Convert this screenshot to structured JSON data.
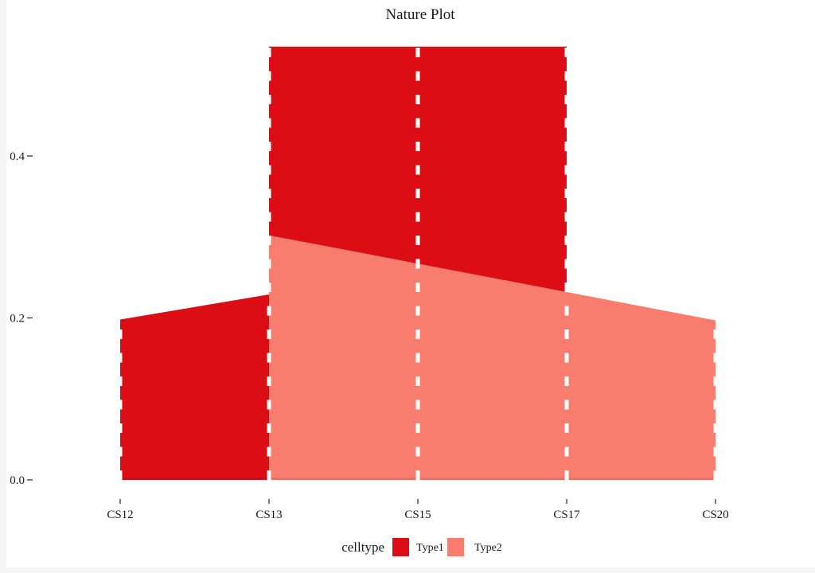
{
  "page": {
    "background": "#ffffff",
    "edge_strip_color": "#f5f5f6"
  },
  "chart_data": {
    "type": "area",
    "title": "Nature Plot",
    "xlabel": "",
    "ylabel": "",
    "categories": [
      "CS12",
      "CS13",
      "CS15",
      "CS17",
      "CS20"
    ],
    "y_ticks": [
      {
        "label": "0.0",
        "value": 0.0
      },
      {
        "label": "0.2",
        "value": 0.2
      },
      {
        "label": "0.4",
        "value": 0.4
      }
    ],
    "ylim": [
      0,
      0.54
    ],
    "grid": false,
    "colors": {
      "Type1": "#DC0D15",
      "Type2": "#F87D6E"
    },
    "series": [
      {
        "name": "Type1",
        "segment": "CS12-CS13",
        "color": "#DC0D15",
        "baseline_edge_color": "#C50A11",
        "x": [
          "CS12",
          "CS13"
        ],
        "lower": [
          0,
          0
        ],
        "upper": [
          0.198,
          0.229
        ]
      },
      {
        "name": "Type2",
        "segment": "CS13-CS20",
        "color": "#F87D6E",
        "baseline_edge_color": "#EC6B5D",
        "x": [
          "CS13",
          "CS15",
          "CS17",
          "CS20"
        ],
        "lower": [
          0,
          0,
          0,
          0
        ],
        "upper": [
          0.302,
          0.267,
          0.232,
          0.197
        ]
      },
      {
        "name": "Type1",
        "segment": "CS13-CS17",
        "color": "#DC0D15",
        "baseline_edge_color": null,
        "x": [
          "CS13",
          "CS15",
          "CS17"
        ],
        "lower": [
          0.302,
          0.267,
          0.232
        ],
        "upper": [
          0.535,
          0.535,
          0.535
        ]
      }
    ],
    "dashed_guides": {
      "color": "#ffffff",
      "at": [
        {
          "x": "CS12",
          "top": 0.198
        },
        {
          "x": "CS13",
          "top": 0.535
        },
        {
          "x": "CS15",
          "top": 0.535
        },
        {
          "x": "CS17",
          "top": 0.535
        },
        {
          "x": "CS20",
          "top": 0.197
        }
      ]
    },
    "legend": {
      "title": "celltype",
      "position": "bottom",
      "entries": [
        {
          "label": "Type1",
          "color": "#DC0D15"
        },
        {
          "label": "Type2",
          "color": "#F87D6E"
        }
      ]
    }
  }
}
